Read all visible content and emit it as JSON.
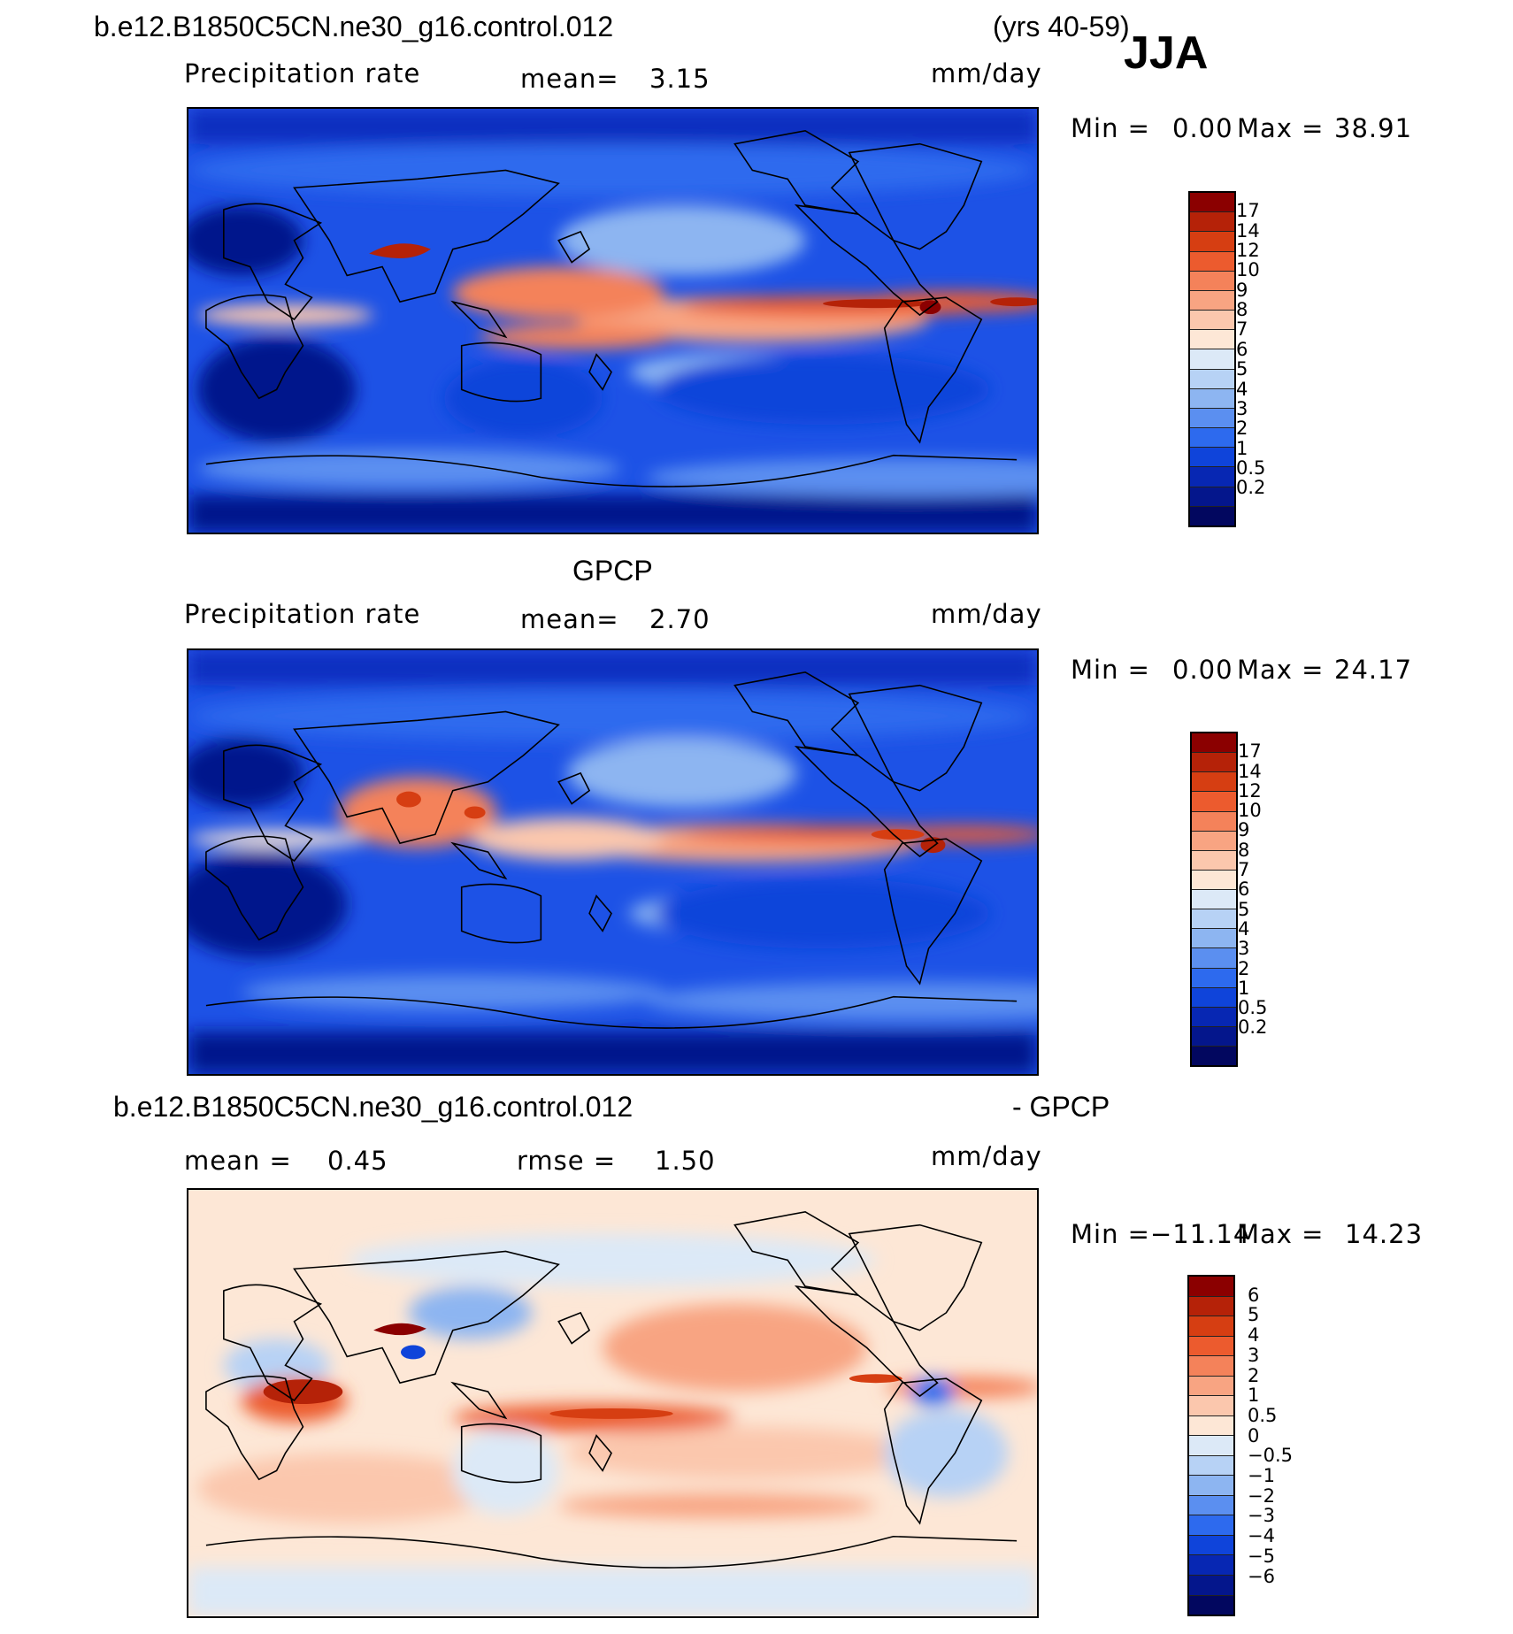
{
  "header": {
    "case_name": "b.e12.B1850C5CN.ne30_g16.control.012",
    "years": "(yrs 40-59)",
    "season": "JJA"
  },
  "panels": [
    {
      "id": "model",
      "title": "",
      "variable": "Precipitation rate",
      "stat1_label": "mean=",
      "stat1_value": "3.15",
      "stat2_label": "",
      "stat2_value": "",
      "units": "mm/day",
      "min_label": "Min =",
      "min_value": "0.00",
      "max_label": "Max =",
      "max_value": "38.91",
      "colorbar_labels": [
        "17",
        "14",
        "12",
        "10",
        "9",
        "8",
        "7",
        "6",
        "5",
        "4",
        "3",
        "2",
        "1",
        "0.5",
        "0.2"
      ],
      "colorbar_colors": [
        "#8b0000",
        "#b52208",
        "#d63e12",
        "#ec5b2e",
        "#f4825a",
        "#f8a482",
        "#fbc7ad",
        "#fde7d6",
        "#dce9f7",
        "#b7d2f5",
        "#8db5f1",
        "#5b8ff0",
        "#2d6aee",
        "#0f44da",
        "#0727b3",
        "#04168c",
        "#02075f"
      ]
    },
    {
      "id": "obs",
      "title": "GPCP",
      "variable": "Precipitation rate",
      "stat1_label": "mean=",
      "stat1_value": "2.70",
      "stat2_label": "",
      "stat2_value": "",
      "units": "mm/day",
      "min_label": "Min =",
      "min_value": "0.00",
      "max_label": "Max =",
      "max_value": "24.17",
      "colorbar_labels": [
        "17",
        "14",
        "12",
        "10",
        "9",
        "8",
        "7",
        "6",
        "5",
        "4",
        "3",
        "2",
        "1",
        "0.5",
        "0.2"
      ],
      "colorbar_colors": [
        "#8b0000",
        "#b52208",
        "#d63e12",
        "#ec5b2e",
        "#f4825a",
        "#f8a482",
        "#fbc7ad",
        "#fde7d6",
        "#dce9f7",
        "#b7d2f5",
        "#8db5f1",
        "#5b8ff0",
        "#2d6aee",
        "#0f44da",
        "#0727b3",
        "#04168c",
        "#02075f"
      ]
    },
    {
      "id": "diff",
      "title_left": "b.e12.B1850C5CN.ne30_g16.control.012",
      "title_right": "- GPCP",
      "variable": "",
      "stat1_label": "mean =",
      "stat1_value": "0.45",
      "stat2_label": "rmse =",
      "stat2_value": "1.50",
      "units": "mm/day",
      "min_label": "Min =",
      "min_value": "−11.14",
      "max_label": "Max =",
      "max_value": "14.23",
      "colorbar_labels": [
        "6",
        "5",
        "4",
        "3",
        "2",
        "1",
        "0.5",
        "0",
        "−0.5",
        "−1",
        "−2",
        "−3",
        "−4",
        "−5",
        "−6"
      ],
      "colorbar_colors": [
        "#8b0000",
        "#b52208",
        "#d63e12",
        "#ec5b2e",
        "#f4825a",
        "#f8a482",
        "#fbc7ad",
        "#fde7d6",
        "#dce9f7",
        "#b7d2f5",
        "#8db5f1",
        "#5b8ff0",
        "#2d6aee",
        "#0f44da",
        "#0727b3",
        "#04168c",
        "#02075f"
      ]
    }
  ]
}
